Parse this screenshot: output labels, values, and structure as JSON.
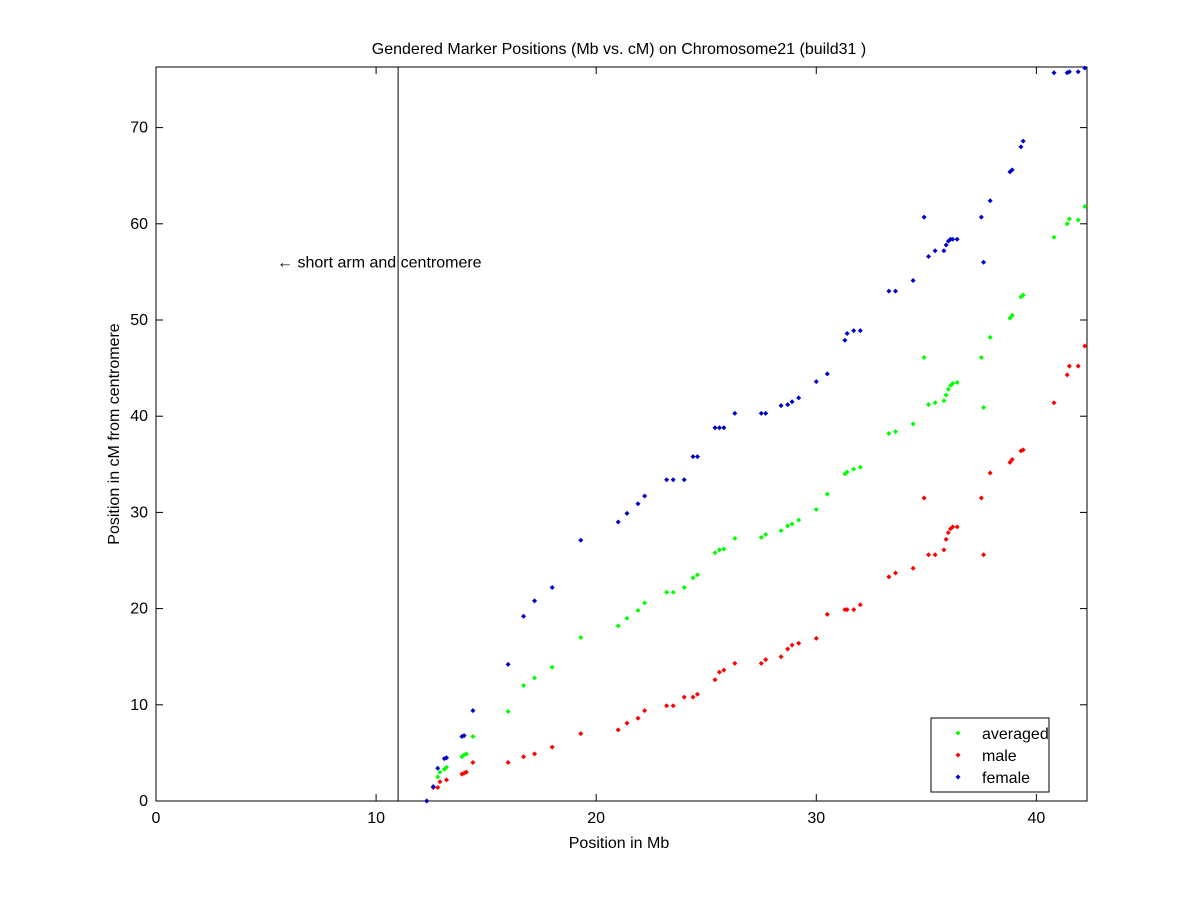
{
  "chart_data": {
    "type": "scatter",
    "title": "Gendered Marker Positions (Mb vs. cM) on Chromosome21 (build31 )",
    "xlabel": "Position in Mb",
    "ylabel": "Position in cM from centromere",
    "xlim": [
      0,
      42.3
    ],
    "ylim": [
      0,
      76.3
    ],
    "xticks": [
      0,
      10,
      20,
      30,
      40
    ],
    "yticks": [
      0,
      10,
      20,
      30,
      40,
      50,
      60,
      70
    ],
    "grid": false,
    "legend_position": "bottom-right",
    "annotation": {
      "text": "← short arm and centromere",
      "x": 5.5,
      "y": 56
    },
    "vertical_line": {
      "x": 11.0
    },
    "series": [
      {
        "name": "averaged",
        "color": "#00ff00",
        "points": [
          [
            12.3,
            0.0
          ],
          [
            12.6,
            1.5
          ],
          [
            12.8,
            2.5
          ],
          [
            12.9,
            3.0
          ],
          [
            13.1,
            3.3
          ],
          [
            13.2,
            3.5
          ],
          [
            13.9,
            4.6
          ],
          [
            14.0,
            4.8
          ],
          [
            14.1,
            4.9
          ],
          [
            14.4,
            6.7
          ],
          [
            16.0,
            9.3
          ],
          [
            16.7,
            12.0
          ],
          [
            17.2,
            12.8
          ],
          [
            18.0,
            13.9
          ],
          [
            19.3,
            17.0
          ],
          [
            21.0,
            18.2
          ],
          [
            21.4,
            19.0
          ],
          [
            21.9,
            19.8
          ],
          [
            22.2,
            20.6
          ],
          [
            23.2,
            21.7
          ],
          [
            23.5,
            21.7
          ],
          [
            24.0,
            22.2
          ],
          [
            24.4,
            23.2
          ],
          [
            24.6,
            23.5
          ],
          [
            25.4,
            25.8
          ],
          [
            25.6,
            26.1
          ],
          [
            25.8,
            26.2
          ],
          [
            26.3,
            27.3
          ],
          [
            27.5,
            27.4
          ],
          [
            27.7,
            27.7
          ],
          [
            28.4,
            28.1
          ],
          [
            28.7,
            28.6
          ],
          [
            28.9,
            28.8
          ],
          [
            29.2,
            29.2
          ],
          [
            30.0,
            30.3
          ],
          [
            30.5,
            31.9
          ],
          [
            31.3,
            34.0
          ],
          [
            31.4,
            34.2
          ],
          [
            31.7,
            34.5
          ],
          [
            32.0,
            34.7
          ],
          [
            33.3,
            38.2
          ],
          [
            33.6,
            38.4
          ],
          [
            34.4,
            39.2
          ],
          [
            34.9,
            46.1
          ],
          [
            35.1,
            41.2
          ],
          [
            35.4,
            41.4
          ],
          [
            35.8,
            41.6
          ],
          [
            35.9,
            42.2
          ],
          [
            36.0,
            42.8
          ],
          [
            36.1,
            43.2
          ],
          [
            36.2,
            43.4
          ],
          [
            36.4,
            43.5
          ],
          [
            37.5,
            46.1
          ],
          [
            37.6,
            40.9
          ],
          [
            37.9,
            48.2
          ],
          [
            38.8,
            50.2
          ],
          [
            38.9,
            50.5
          ],
          [
            39.3,
            52.4
          ],
          [
            39.4,
            52.6
          ],
          [
            40.8,
            58.6
          ],
          [
            41.4,
            60.0
          ],
          [
            41.5,
            60.5
          ],
          [
            41.9,
            60.4
          ],
          [
            42.2,
            61.8
          ]
        ]
      },
      {
        "name": "male",
        "color": "#ff0000",
        "points": [
          [
            12.3,
            0.0
          ],
          [
            12.6,
            1.4
          ],
          [
            12.8,
            1.4
          ],
          [
            12.9,
            2.0
          ],
          [
            13.2,
            2.2
          ],
          [
            13.9,
            2.8
          ],
          [
            14.0,
            2.9
          ],
          [
            14.1,
            3.0
          ],
          [
            14.4,
            4.0
          ],
          [
            16.0,
            4.0
          ],
          [
            16.7,
            4.6
          ],
          [
            17.2,
            4.9
          ],
          [
            18.0,
            5.6
          ],
          [
            19.3,
            7.0
          ],
          [
            21.0,
            7.4
          ],
          [
            21.4,
            8.1
          ],
          [
            21.9,
            8.6
          ],
          [
            22.2,
            9.4
          ],
          [
            23.2,
            9.9
          ],
          [
            23.5,
            9.9
          ],
          [
            24.0,
            10.8
          ],
          [
            24.4,
            10.8
          ],
          [
            24.6,
            11.1
          ],
          [
            25.4,
            12.6
          ],
          [
            25.6,
            13.4
          ],
          [
            25.8,
            13.6
          ],
          [
            26.3,
            14.3
          ],
          [
            27.5,
            14.3
          ],
          [
            27.7,
            14.7
          ],
          [
            28.4,
            15.0
          ],
          [
            28.7,
            15.8
          ],
          [
            28.9,
            16.2
          ],
          [
            29.2,
            16.4
          ],
          [
            30.0,
            16.9
          ],
          [
            30.5,
            19.4
          ],
          [
            31.3,
            19.9
          ],
          [
            31.4,
            19.9
          ],
          [
            31.7,
            19.9
          ],
          [
            32.0,
            20.4
          ],
          [
            33.3,
            23.3
          ],
          [
            33.6,
            23.7
          ],
          [
            34.4,
            24.2
          ],
          [
            34.9,
            31.5
          ],
          [
            35.1,
            25.6
          ],
          [
            35.4,
            25.6
          ],
          [
            35.8,
            26.1
          ],
          [
            35.9,
            27.2
          ],
          [
            36.0,
            27.9
          ],
          [
            36.1,
            28.3
          ],
          [
            36.2,
            28.5
          ],
          [
            36.4,
            28.5
          ],
          [
            37.5,
            31.5
          ],
          [
            37.6,
            25.6
          ],
          [
            37.9,
            34.1
          ],
          [
            38.8,
            35.2
          ],
          [
            38.9,
            35.5
          ],
          [
            39.3,
            36.4
          ],
          [
            39.4,
            36.5
          ],
          [
            40.8,
            41.4
          ],
          [
            41.4,
            44.3
          ],
          [
            41.5,
            45.2
          ],
          [
            41.9,
            45.2
          ],
          [
            42.2,
            47.3
          ]
        ]
      },
      {
        "name": "female",
        "color": "#0000cc",
        "points": [
          [
            12.3,
            0.0
          ],
          [
            12.6,
            1.5
          ],
          [
            12.8,
            3.4
          ],
          [
            13.1,
            4.4
          ],
          [
            13.2,
            4.5
          ],
          [
            13.9,
            6.7
          ],
          [
            14.0,
            6.8
          ],
          [
            14.4,
            9.4
          ],
          [
            16.0,
            14.2
          ],
          [
            16.7,
            19.2
          ],
          [
            17.2,
            20.8
          ],
          [
            18.0,
            22.2
          ],
          [
            19.3,
            27.1
          ],
          [
            21.0,
            29.0
          ],
          [
            21.4,
            29.9
          ],
          [
            21.9,
            30.9
          ],
          [
            22.2,
            31.7
          ],
          [
            23.2,
            33.4
          ],
          [
            23.5,
            33.4
          ],
          [
            24.0,
            33.4
          ],
          [
            24.4,
            35.8
          ],
          [
            24.6,
            35.8
          ],
          [
            25.4,
            38.8
          ],
          [
            25.6,
            38.8
          ],
          [
            25.8,
            38.8
          ],
          [
            26.3,
            40.3
          ],
          [
            27.5,
            40.3
          ],
          [
            27.7,
            40.3
          ],
          [
            28.4,
            41.1
          ],
          [
            28.7,
            41.2
          ],
          [
            28.9,
            41.5
          ],
          [
            29.2,
            41.9
          ],
          [
            30.0,
            43.6
          ],
          [
            30.5,
            44.4
          ],
          [
            31.3,
            47.9
          ],
          [
            31.4,
            48.6
          ],
          [
            31.7,
            48.9
          ],
          [
            32.0,
            48.9
          ],
          [
            33.3,
            53.0
          ],
          [
            33.6,
            53.0
          ],
          [
            34.4,
            54.1
          ],
          [
            34.9,
            60.7
          ],
          [
            35.1,
            56.6
          ],
          [
            35.4,
            57.2
          ],
          [
            35.8,
            57.2
          ],
          [
            35.9,
            57.8
          ],
          [
            36.0,
            58.2
          ],
          [
            36.1,
            58.4
          ],
          [
            36.2,
            58.4
          ],
          [
            36.4,
            58.4
          ],
          [
            37.5,
            60.7
          ],
          [
            37.6,
            56.0
          ],
          [
            37.9,
            62.4
          ],
          [
            38.8,
            65.4
          ],
          [
            38.9,
            65.6
          ],
          [
            39.3,
            68.0
          ],
          [
            39.4,
            68.6
          ],
          [
            40.8,
            75.7
          ],
          [
            41.4,
            75.7
          ],
          [
            41.5,
            75.8
          ],
          [
            41.9,
            75.8
          ],
          [
            42.2,
            76.2
          ]
        ]
      }
    ]
  }
}
